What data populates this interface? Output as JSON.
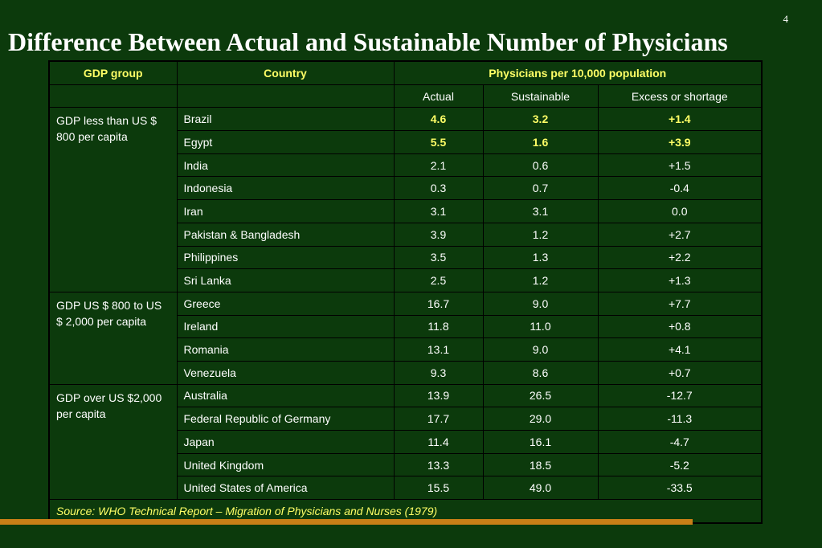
{
  "page_number": "4",
  "title": "Difference Between Actual and Sustainable Number of Physicians",
  "table": {
    "headers": {
      "gdp_group": "GDP group",
      "country": "Country",
      "physicians": "Physicians per 10,000 population",
      "actual": "Actual",
      "sustainable": "Sustainable",
      "excess": "Excess or shortage"
    },
    "groups": [
      {
        "label": "GDP less than US $ 800 per capita",
        "rows": [
          {
            "country": "Brazil",
            "actual": "4.6",
            "sustainable": "3.2",
            "excess": "+1.4",
            "bold": true
          },
          {
            "country": "Egypt",
            "actual": "5.5",
            "sustainable": "1.6",
            "excess": "+3.9",
            "bold": true
          },
          {
            "country": "India",
            "actual": "2.1",
            "sustainable": "0.6",
            "excess": "+1.5"
          },
          {
            "country": "Indonesia",
            "actual": "0.3",
            "sustainable": "0.7",
            "excess": "-0.4"
          },
          {
            "country": "Iran",
            "actual": "3.1",
            "sustainable": "3.1",
            "excess": "0.0"
          },
          {
            "country": "Pakistan & Bangladesh",
            "actual": "3.9",
            "sustainable": "1.2",
            "excess": "+2.7"
          },
          {
            "country": "Philippines",
            "actual": "3.5",
            "sustainable": "1.3",
            "excess": "+2.2"
          },
          {
            "country": "Sri Lanka",
            "actual": "2.5",
            "sustainable": "1.2",
            "excess": "+1.3"
          }
        ]
      },
      {
        "label": "GDP US $ 800 to US $ 2,000 per capita",
        "rows": [
          {
            "country": "Greece",
            "actual": "16.7",
            "sustainable": "9.0",
            "excess": "+7.7"
          },
          {
            "country": "Ireland",
            "actual": "11.8",
            "sustainable": "11.0",
            "excess": "+0.8"
          },
          {
            "country": "Romania",
            "actual": "13.1",
            "sustainable": "9.0",
            "excess": "+4.1"
          },
          {
            "country": "Venezuela",
            "actual": "9.3",
            "sustainable": "8.6",
            "excess": "+0.7"
          }
        ]
      },
      {
        "label": "GDP over US $2,000 per capita",
        "rows": [
          {
            "country": "Australia",
            "actual": "13.9",
            "sustainable": "26.5",
            "excess": "-12.7"
          },
          {
            "country": "Federal Republic of Germany",
            "actual": "17.7",
            "sustainable": "29.0",
            "excess": "-11.3"
          },
          {
            "country": "Japan",
            "actual": "11.4",
            "sustainable": "16.1",
            "excess": "-4.7"
          },
          {
            "country": "United Kingdom",
            "actual": "13.3",
            "sustainable": "18.5",
            "excess": "-5.2"
          },
          {
            "country": "United States of America",
            "actual": "15.5",
            "sustainable": "49.0",
            "excess": "-33.5"
          }
        ]
      }
    ],
    "source": "Source: WHO Technical Report – Migration of Physicians and Nurses (1979)"
  },
  "colors": {
    "background": "#0c3a0c",
    "header_text": "#ffff66",
    "body_text": "#ffffff",
    "accent_bar": "#c87f17"
  }
}
